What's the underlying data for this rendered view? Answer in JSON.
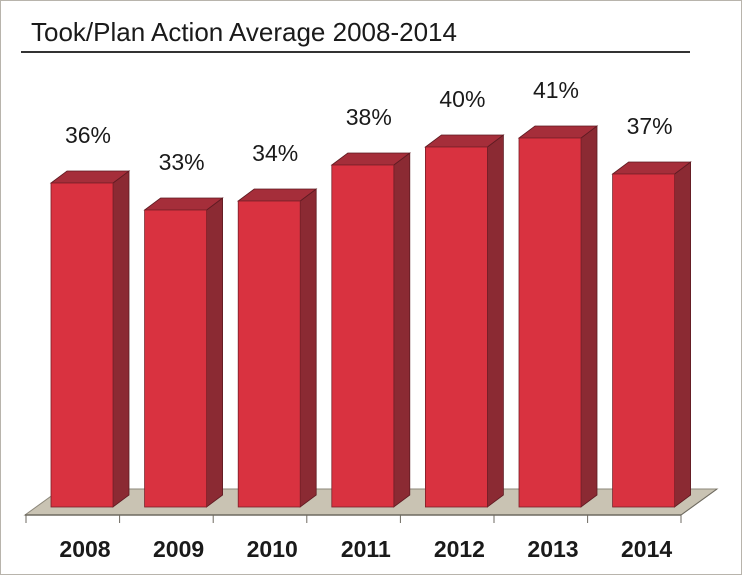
{
  "chart_data": {
    "type": "bar",
    "title": "Took/Plan Action Average 2008-2014",
    "categories": [
      "2008",
      "2009",
      "2010",
      "2011",
      "2012",
      "2013",
      "2014"
    ],
    "values": [
      36,
      33,
      34,
      38,
      40,
      41,
      37
    ],
    "data_labels": [
      "36%",
      "33%",
      "34%",
      "38%",
      "40%",
      "41%",
      "37%"
    ],
    "value_unit": "%",
    "xlabel": "",
    "ylabel": "",
    "grid": false,
    "legend": "none",
    "style": "3d-columns",
    "colors": {
      "bar_front": "#d93240",
      "bar_side": "#8b2a33",
      "bar_top": "#a52e3a",
      "floor": "#c9c3b3",
      "frame": "#b8b4ac"
    }
  }
}
